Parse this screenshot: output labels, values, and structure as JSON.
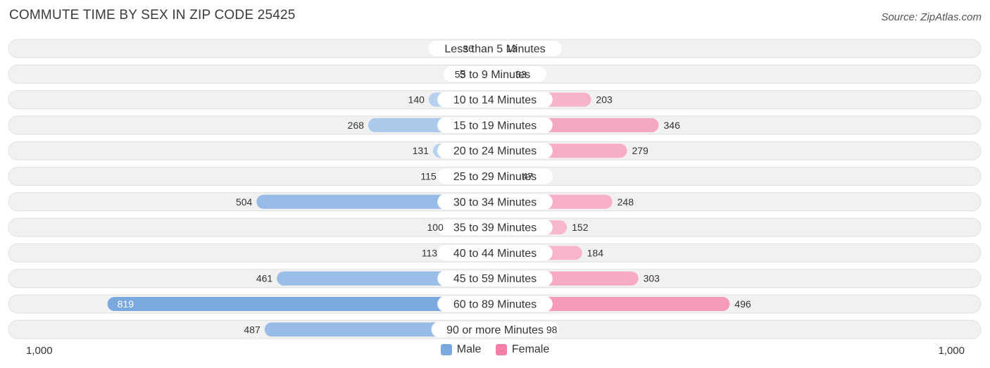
{
  "header": {
    "title": "COMMUTE TIME BY SEX IN ZIP CODE 25425",
    "source": "Source: ZipAtlas.com"
  },
  "chart_data": {
    "type": "bar",
    "orientation": "horizontal-diverging",
    "categories": [
      "Less than 5 Minutes",
      "5 to 9 Minutes",
      "10 to 14 Minutes",
      "15 to 19 Minutes",
      "20 to 24 Minutes",
      "25 to 29 Minutes",
      "30 to 34 Minutes",
      "35 to 39 Minutes",
      "40 to 44 Minutes",
      "45 to 59 Minutes",
      "60 to 89 Minutes",
      "90 or more Minutes"
    ],
    "series": [
      {
        "name": "Male",
        "color": "#7aa9e0",
        "values": [
          36,
          53,
          140,
          268,
          131,
          115,
          504,
          100,
          113,
          461,
          819,
          487
        ]
      },
      {
        "name": "Female",
        "color": "#f27ea3",
        "values": [
          13,
          33,
          203,
          346,
          279,
          47,
          248,
          152,
          184,
          303,
          496,
          98
        ]
      }
    ],
    "axis": {
      "min_label": "1,000",
      "max_label": "1,000",
      "max": 1000
    },
    "legend_position": "bottom-center"
  }
}
